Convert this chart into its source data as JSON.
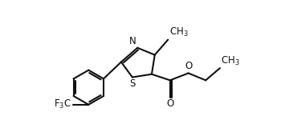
{
  "bg": "#ffffff",
  "lc": "#111111",
  "lw": 1.5,
  "figsize": [
    3.5,
    1.55
  ],
  "dpi": 100,
  "xlim": [
    -2.5,
    7.5
  ],
  "ylim": [
    -2.8,
    3.2
  ]
}
